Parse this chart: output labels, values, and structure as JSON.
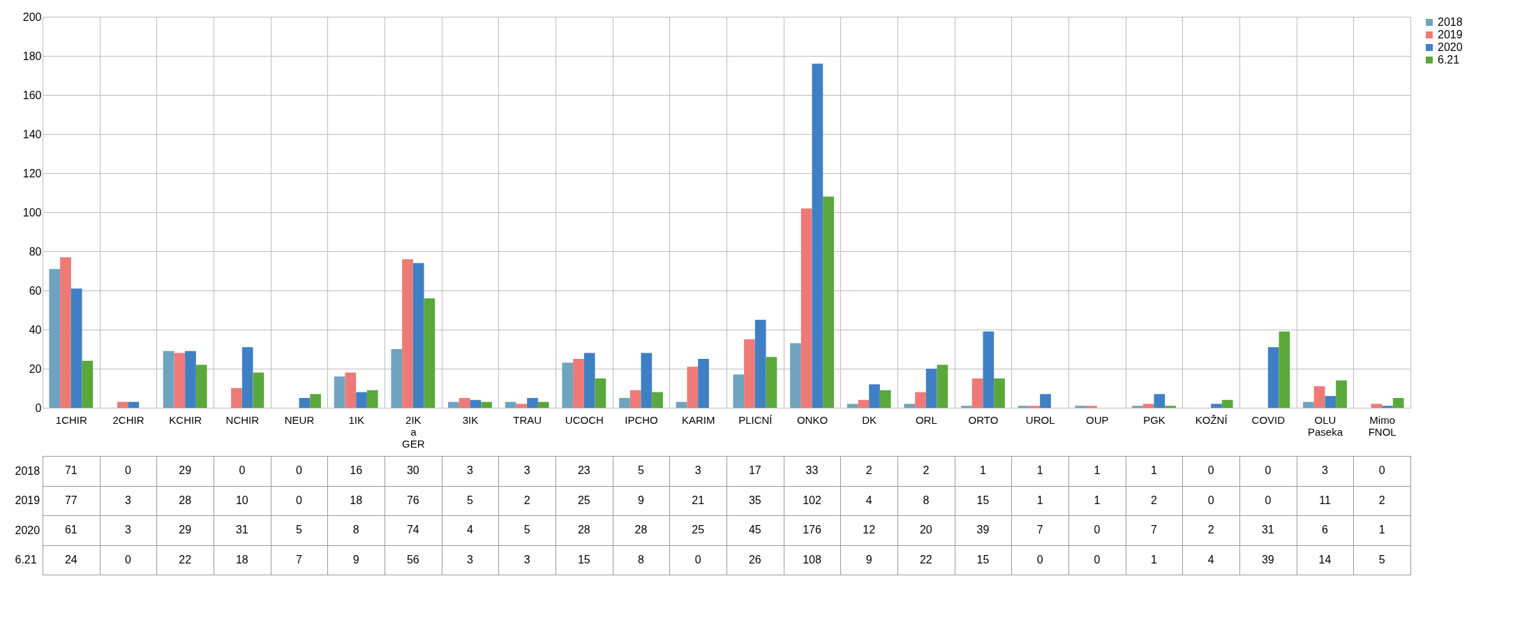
{
  "chart_data": {
    "type": "bar",
    "categories": [
      "1CHIR",
      "2CHIR",
      "KCHIR",
      "NCHIR",
      "NEUR",
      "1IK",
      "2IK a GER",
      "3IK",
      "TRAU",
      "UCOCH",
      "IPCHO",
      "KARIM",
      "PLICNÍ",
      "ONKO",
      "DK",
      "ORL",
      "ORTO",
      "UROL",
      "OUP",
      "PGK",
      "KOŽNÍ",
      "COVID",
      "OLU Paseka",
      "Mimo FNOL"
    ],
    "series": [
      {
        "name": "2018",
        "color": "#6fa3bf",
        "values": [
          71,
          0,
          29,
          0,
          0,
          16,
          30,
          3,
          3,
          23,
          5,
          3,
          17,
          33,
          2,
          2,
          1,
          1,
          1,
          1,
          0,
          0,
          3,
          0
        ]
      },
      {
        "name": "2019",
        "color": "#ee7a78",
        "values": [
          77,
          3,
          28,
          10,
          0,
          18,
          76,
          5,
          2,
          25,
          9,
          21,
          35,
          102,
          4,
          8,
          15,
          1,
          1,
          2,
          0,
          0,
          11,
          2
        ]
      },
      {
        "name": "2020",
        "color": "#3f80c4",
        "values": [
          61,
          3,
          29,
          31,
          5,
          8,
          74,
          4,
          5,
          28,
          28,
          25,
          45,
          176,
          12,
          20,
          39,
          7,
          0,
          7,
          2,
          31,
          6,
          1
        ]
      },
      {
        "name": "6.21",
        "color": "#5aa83a",
        "values": [
          24,
          0,
          22,
          18,
          7,
          9,
          56,
          3,
          3,
          15,
          8,
          0,
          26,
          108,
          9,
          22,
          15,
          0,
          0,
          1,
          4,
          39,
          14,
          5
        ]
      }
    ],
    "ylim": [
      0,
      200
    ],
    "yticks": [
      0,
      20,
      40,
      60,
      80,
      100,
      120,
      140,
      160,
      180,
      200
    ],
    "grid": "y",
    "legend": "right",
    "data_labels": true
  }
}
